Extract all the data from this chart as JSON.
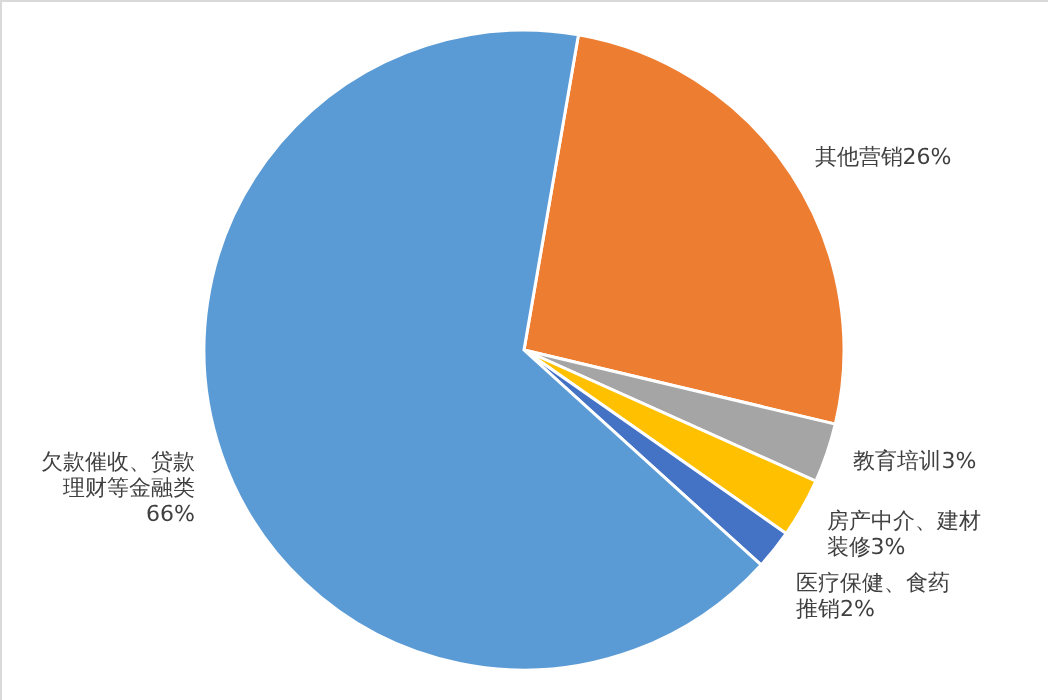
{
  "chart_data": {
    "type": "pie",
    "categories": [
      "其他营销",
      "教育培训",
      "房产中介、建材装修",
      "医疗保健、食药推销",
      "欠款催收、贷款理财等金融类"
    ],
    "values": [
      26,
      3,
      3,
      2,
      66
    ],
    "colors": [
      "#ed7d31",
      "#a5a5a5",
      "#ffc000",
      "#4472c4",
      "#5b9bd5"
    ],
    "value_labels": [
      "26%",
      "3%",
      "3%",
      "2%",
      "66%"
    ]
  }
}
